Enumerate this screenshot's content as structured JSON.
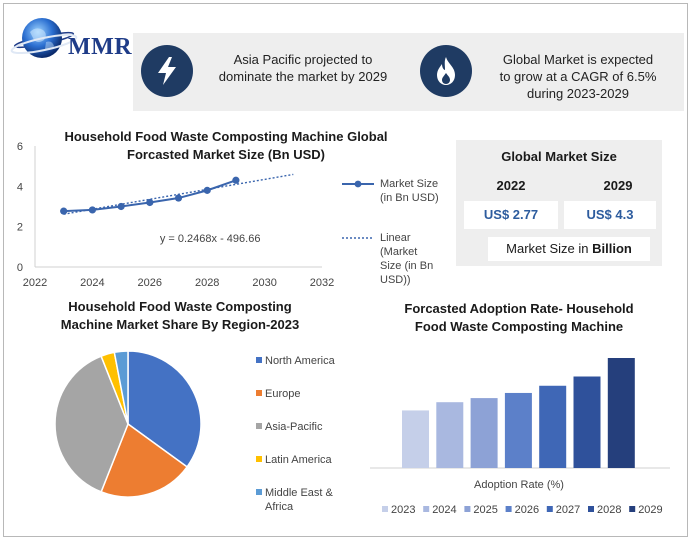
{
  "brand": {
    "logo_text": "MMR"
  },
  "banners": [
    {
      "text_line1": "Asia Pacific projected to",
      "text_line2": "dominate the market by 2029",
      "icon": "lightning-icon"
    },
    {
      "text_line1": "Global Market is expected",
      "text_line2": "to grow at a CAGR of 6.5%",
      "text_line3": "during 2023-2029",
      "icon": "flame-icon"
    }
  ],
  "colors": {
    "navy": "#1f3b63",
    "line_blue": "#3a65ad",
    "accent_blue": "#2d5c9e"
  },
  "global_market": {
    "title": "Global Market Size",
    "year_1": "2022",
    "year_2": "2029",
    "value_1": "US$ 2.77",
    "value_2": "US$ 4.3",
    "unit_prefix": "Market Size in ",
    "unit_bold": "Billion"
  },
  "chart_data": [
    {
      "type": "line",
      "title_line1": "Household Food Waste Composting Machine Global",
      "title_line2": "Forcasted Market Size (Bn USD)",
      "x": [
        2023,
        2024,
        2025,
        2026,
        2027,
        2028,
        2029
      ],
      "series": [
        {
          "name": "Market Size (in Bn USD)",
          "legend_lines": [
            "Market Size",
            "(in Bn USD)"
          ],
          "values": [
            2.77,
            2.83,
            3.0,
            3.2,
            3.42,
            3.8,
            4.3
          ]
        }
      ],
      "trendline": {
        "name": "Linear (Market Size (in Bn USD))",
        "legend_lines": [
          "Linear",
          "(Market",
          "Size (in Bn",
          "USD))"
        ],
        "slope": 0.2468,
        "intercept": -496.66,
        "x_range": [
          2023,
          2031
        ],
        "equation": "y = 0.2468x - 496.66"
      },
      "xlim": [
        2022,
        2032
      ],
      "ylim": [
        0,
        6
      ],
      "x_ticks": [
        2022,
        2024,
        2026,
        2028,
        2030,
        2032
      ],
      "y_ticks": [
        0,
        2,
        4,
        6
      ],
      "grid": false,
      "legend_position": "right"
    },
    {
      "type": "pie",
      "title_line1": "Household Food Waste Composting",
      "title_line2": "Machine Market Share By Region-2023",
      "slices": [
        {
          "label": "North America",
          "value": 35,
          "color": "#4472c4"
        },
        {
          "label": "Europe",
          "value": 21,
          "color": "#ed7d31"
        },
        {
          "label": "Asia-Pacific",
          "value": 38,
          "color": "#a5a5a5"
        },
        {
          "label": "Latin America",
          "value": 3,
          "color": "#ffc000"
        },
        {
          "label": "Middle East & Africa",
          "legend_lines": [
            "Middle East &",
            "Africa"
          ],
          "value": 3,
          "color": "#5b9bd5"
        }
      ],
      "legend_position": "right"
    },
    {
      "type": "bar",
      "title_line1": "Forcasted Adoption Rate- Household",
      "title_line2": "Food Waste Composting Machine",
      "xlabel": "Adoption Rate (%)",
      "series": [
        {
          "name": "2023",
          "value": 56,
          "color": "#c5cfe9"
        },
        {
          "name": "2024",
          "value": 64,
          "color": "#a9b8e0"
        },
        {
          "name": "2025",
          "value": 68,
          "color": "#8da2d6"
        },
        {
          "name": "2026",
          "value": 73,
          "color": "#5c80c9"
        },
        {
          "name": "2027",
          "value": 80,
          "color": "#3f67b6"
        },
        {
          "name": "2028",
          "value": 89,
          "color": "#2f519b"
        },
        {
          "name": "2029",
          "value": 107,
          "color": "#253f7c"
        }
      ],
      "ylim": [
        0,
        110
      ],
      "legend_position": "bottom"
    }
  ]
}
